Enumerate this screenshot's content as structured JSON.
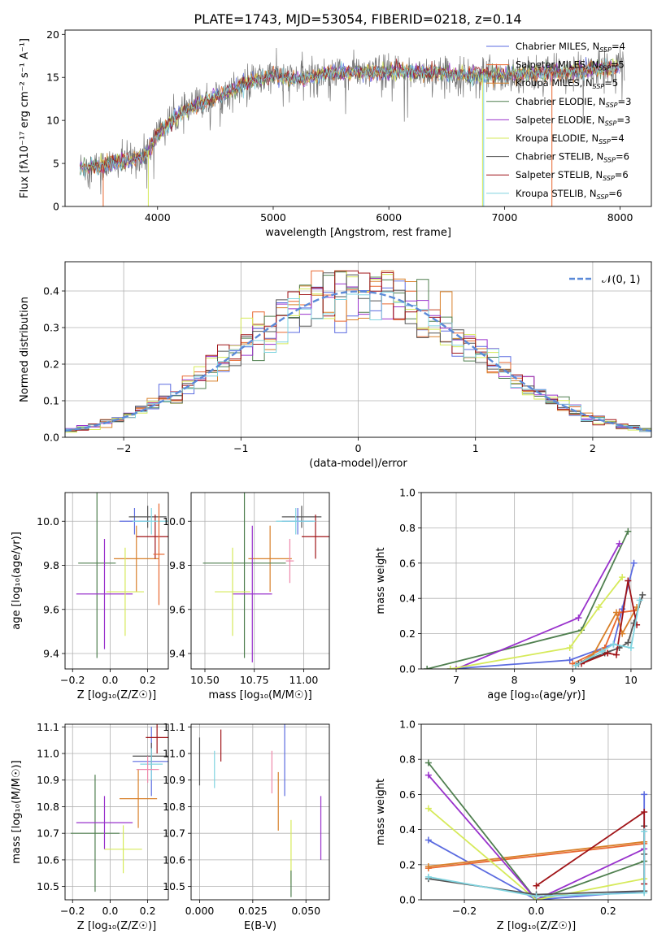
{
  "figure": {
    "title": "PLATE=1743, MJD=53054, FIBERID=0218, z=0.14"
  },
  "colors": {
    "Chabrier MILES": "#5b6be0",
    "Salpeter MILES": "#e8672f",
    "Kroupa MILES": "#d8802a",
    "Chabrier ELODIE": "#4f7f4f",
    "Salpeter ELODIE": "#9932cc",
    "Kroupa ELODIE": "#d6ea5a",
    "Chabrier STELIB": "#555555",
    "Salpeter STELIB": "#a01418",
    "Kroupa STELIB": "#80d4e0",
    "Salpeter MILES (pink)": "#ee88aa"
  },
  "chart_data": [
    {
      "id": "spectrum",
      "type": "line",
      "title": "PLATE=1743, MJD=53054, FIBERID=0218, z=0.14",
      "xlabel": "wavelength [Angstrom, rest frame]",
      "ylabel": "Flux [fλ10⁻¹⁷ erg cm⁻² s⁻¹ A⁻¹]",
      "xlim": [
        3200,
        8270
      ],
      "ylim": [
        0,
        20.5
      ],
      "xticks": [
        4000,
        5000,
        6000,
        7000,
        8000
      ],
      "yticks": [
        0,
        5,
        10,
        15,
        20
      ],
      "legend_placement": "top-right",
      "legend": [
        {
          "name": "Chabrier MILES, N_SSP=4",
          "color": "#5b6be0"
        },
        {
          "name": "Salpeter MILES, N_SSP=5",
          "color": "#e8672f"
        },
        {
          "name": "Kroupa MILES, N_SSP=5",
          "color": "#d8802a"
        },
        {
          "name": "Chabrier ELODIE, N_SSP=3",
          "color": "#4f7f4f"
        },
        {
          "name": "Salpeter ELODIE, N_SSP=3",
          "color": "#9932cc"
        },
        {
          "name": "Kroupa ELODIE, N_SSP=4",
          "color": "#d6ea5a"
        },
        {
          "name": "Chabrier STELIB, N_SSP=6",
          "color": "#555555"
        },
        {
          "name": "Salpeter STELIB, N_SSP=6",
          "color": "#a01418"
        },
        {
          "name": "Kroupa STELIB, N_SSP=6",
          "color": "#80d4e0"
        }
      ],
      "continuum": [
        [
          3300,
          4.6
        ],
        [
          3500,
          4.7
        ],
        [
          3700,
          5.2
        ],
        [
          3900,
          6.0
        ],
        [
          4000,
          8.5
        ],
        [
          4200,
          10.8
        ],
        [
          4400,
          12.2
        ],
        [
          4600,
          13.2
        ],
        [
          4800,
          14.5
        ],
        [
          5000,
          15.2
        ],
        [
          5200,
          14.8
        ],
        [
          5500,
          15.5
        ],
        [
          5800,
          15.6
        ],
        [
          6000,
          15.6
        ],
        [
          6300,
          15.6
        ],
        [
          6600,
          15.3
        ],
        [
          7000,
          15.3
        ],
        [
          7500,
          15.6
        ],
        [
          8000,
          16.3
        ]
      ]
    },
    {
      "id": "residuals",
      "type": "line",
      "xlabel": "(data-model)/error",
      "ylabel": "Normed distribution",
      "xlim": [
        -2.5,
        2.5
      ],
      "ylim": [
        0,
        0.48
      ],
      "xticks": [
        -2,
        -1,
        0,
        1,
        2
      ],
      "yticks": [
        0.0,
        0.1,
        0.2,
        0.3,
        0.4
      ],
      "grid": true,
      "legend_placement": "top-right",
      "legend": [
        {
          "name": "𝒩(0, 1)",
          "color": "#5b8ad8",
          "dashed": true
        }
      ],
      "bins": [
        -2.5,
        2.5,
        50
      ],
      "normal": {
        "mean": 0,
        "sigma": 1
      }
    },
    {
      "id": "age_vs_Z",
      "type": "scatter",
      "xlabel": "Z [log₁₀(Z/Z☉)]",
      "ylabel": "age  [log₁₀(age/yr)]",
      "xlim": [
        -0.24,
        0.31
      ],
      "ylim": [
        9.33,
        10.13
      ],
      "xticks": [
        -0.2,
        0.0,
        0.2
      ],
      "yticks": [
        9.4,
        9.6,
        9.8,
        10.0
      ],
      "grid": true,
      "points": [
        {
          "x": 0.13,
          "y": 10.0,
          "xerr": 0.08,
          "yerr": 0.06,
          "c": "#5b6be0"
        },
        {
          "x": 0.14,
          "y": 9.83,
          "xerr": 0.12,
          "yerr": 0.15,
          "c": "#d8802a"
        },
        {
          "x": -0.07,
          "y": 9.81,
          "xerr": 0.1,
          "yerr": 0.43,
          "c": "#4f7f4f"
        },
        {
          "x": -0.03,
          "y": 9.67,
          "xerr": 0.15,
          "yerr": 0.25,
          "c": "#9932cc"
        },
        {
          "x": 0.08,
          "y": 9.68,
          "xerr": 0.1,
          "yerr": 0.2,
          "c": "#d6ea5a"
        },
        {
          "x": 0.2,
          "y": 10.02,
          "xerr": 0.1,
          "yerr": 0.05,
          "c": "#555555"
        },
        {
          "x": 0.24,
          "y": 9.93,
          "xerr": 0.1,
          "yerr": 0.1,
          "c": "#a01418"
        },
        {
          "x": 0.22,
          "y": 10.0,
          "xerr": 0.1,
          "yerr": 0.06,
          "c": "#80d4e0"
        },
        {
          "x": 0.26,
          "y": 9.85,
          "xerr": 0.03,
          "yerr": 0.23,
          "c": "#e8672f"
        }
      ]
    },
    {
      "id": "age_vs_mass",
      "type": "scatter",
      "xlabel": "mass [log₁₀(M/M☉)]",
      "ylabel": "",
      "xlim": [
        10.43,
        11.13
      ],
      "ylim": [
        9.33,
        10.13
      ],
      "xticks": [
        10.5,
        10.75,
        11.0
      ],
      "yticks": [
        9.4,
        9.6,
        9.8,
        10.0
      ],
      "grid": true,
      "points": [
        {
          "x": 10.97,
          "y": 10.0,
          "xerr": 0.08,
          "yerr": 0.06,
          "c": "#5b6be0"
        },
        {
          "x": 10.83,
          "y": 9.83,
          "xerr": 0.11,
          "yerr": 0.15,
          "c": "#d8802a"
        },
        {
          "x": 10.7,
          "y": 9.81,
          "xerr": 0.21,
          "yerr": 0.43,
          "c": "#4f7f4f"
        },
        {
          "x": 10.74,
          "y": 9.67,
          "xerr": 0.1,
          "yerr": 0.31,
          "c": "#9932cc"
        },
        {
          "x": 10.64,
          "y": 9.68,
          "xerr": 0.09,
          "yerr": 0.2,
          "c": "#d6ea5a"
        },
        {
          "x": 10.99,
          "y": 10.02,
          "xerr": 0.1,
          "yerr": 0.05,
          "c": "#555555"
        },
        {
          "x": 11.06,
          "y": 9.93,
          "xerr": 0.07,
          "yerr": 0.1,
          "c": "#a01418"
        },
        {
          "x": 10.96,
          "y": 10.0,
          "xerr": 0.1,
          "yerr": 0.06,
          "c": "#80d4e0"
        },
        {
          "x": 10.93,
          "y": 9.82,
          "xerr": 0.02,
          "yerr": 0.1,
          "c": "#ee88aa"
        }
      ]
    },
    {
      "id": "weight_vs_age",
      "type": "line",
      "xlabel": "age  [log₁₀(age/yr)]",
      "ylabel": "mass weight",
      "xlim": [
        6.4,
        10.35
      ],
      "ylim": [
        0,
        1
      ],
      "xticks": [
        7,
        8,
        9,
        10
      ],
      "yticks": [
        0.0,
        0.2,
        0.4,
        0.6,
        0.8,
        1.0
      ],
      "grid": true,
      "series": [
        {
          "c": "#5b6be0",
          "x": [
            6.9,
            8.95,
            9.7,
            9.85,
            10.05
          ],
          "y": [
            0.0,
            0.05,
            0.14,
            0.34,
            0.6
          ]
        },
        {
          "c": "#e8672f",
          "x": [
            9.0,
            9.55,
            9.8,
            10.05
          ],
          "y": [
            0.03,
            0.12,
            0.32,
            0.33
          ]
        },
        {
          "c": "#d8802a",
          "x": [
            9.05,
            9.35,
            9.75,
            9.85,
            10.1
          ],
          "y": [
            0.02,
            0.08,
            0.32,
            0.2,
            0.35
          ]
        },
        {
          "c": "#4f7f4f",
          "x": [
            6.5,
            9.15,
            9.95
          ],
          "y": [
            0.0,
            0.22,
            0.78
          ]
        },
        {
          "c": "#9932cc",
          "x": [
            7.0,
            9.1,
            9.8
          ],
          "y": [
            0.0,
            0.29,
            0.71
          ]
        },
        {
          "c": "#d6ea5a",
          "x": [
            6.9,
            8.95,
            9.45,
            9.85
          ],
          "y": [
            0.0,
            0.12,
            0.35,
            0.52
          ]
        },
        {
          "c": "#555555",
          "x": [
            9.1,
            9.55,
            9.8,
            9.95,
            10.05,
            10.2
          ],
          "y": [
            0.03,
            0.09,
            0.12,
            0.15,
            0.26,
            0.42
          ]
        },
        {
          "c": "#a01418",
          "x": [
            9.15,
            9.6,
            9.75,
            9.95,
            10.1
          ],
          "y": [
            0.03,
            0.09,
            0.08,
            0.5,
            0.25
          ]
        },
        {
          "c": "#80d4e0",
          "x": [
            9.05,
            9.5,
            9.7,
            10.0,
            10.15
          ],
          "y": [
            0.02,
            0.1,
            0.14,
            0.12,
            0.39
          ]
        }
      ]
    },
    {
      "id": "mass_vs_Z",
      "type": "scatter",
      "xlabel": "Z [log₁₀(Z/Z☉)]",
      "ylabel": "mass [log₁₀(M/M☉)]",
      "xlim": [
        -0.24,
        0.31
      ],
      "ylim": [
        10.45,
        11.11
      ],
      "xticks": [
        -0.2,
        0.0,
        0.2
      ],
      "yticks": [
        10.5,
        10.6,
        10.7,
        10.8,
        10.9,
        11.0,
        11.1
      ],
      "grid": true,
      "points": [
        {
          "x": 0.22,
          "y": 10.97,
          "xerr": 0.1,
          "yerr": 0.13,
          "c": "#5b6be0"
        },
        {
          "x": 0.15,
          "y": 10.83,
          "xerr": 0.1,
          "yerr": 0.11,
          "c": "#d8802a"
        },
        {
          "x": -0.08,
          "y": 10.7,
          "xerr": 0.13,
          "yerr": 0.22,
          "c": "#4f7f4f"
        },
        {
          "x": -0.03,
          "y": 10.74,
          "xerr": 0.15,
          "yerr": 0.1,
          "c": "#9932cc"
        },
        {
          "x": 0.07,
          "y": 10.64,
          "xerr": 0.1,
          "yerr": 0.09,
          "c": "#d6ea5a"
        },
        {
          "x": 0.22,
          "y": 10.99,
          "xerr": 0.1,
          "yerr": 0.05,
          "c": "#555555"
        },
        {
          "x": 0.25,
          "y": 11.06,
          "xerr": 0.06,
          "yerr": 0.06,
          "c": "#a01418"
        },
        {
          "x": 0.22,
          "y": 10.96,
          "xerr": 0.06,
          "yerr": 0.06,
          "c": "#80d4e0"
        },
        {
          "x": 0.2,
          "y": 10.94,
          "xerr": 0.06,
          "yerr": 0.05,
          "c": "#ee88aa"
        }
      ]
    },
    {
      "id": "mass_vs_ebv",
      "type": "scatter",
      "xlabel": "E(B-V)",
      "ylabel": "",
      "xlim": [
        -0.004,
        0.061
      ],
      "ylim": [
        10.45,
        11.11
      ],
      "xticks": [
        0.0,
        0.025,
        0.05
      ],
      "ytick_labels": [
        "10.5",
        "10.6",
        "10.7",
        "10.8",
        "10.9",
        "11.0",
        "11.1"
      ],
      "yticks": [
        10.5,
        10.6,
        10.7,
        10.8,
        10.9,
        11.0,
        11.1
      ],
      "grid": true,
      "points": [
        {
          "x": 0.0,
          "y": 10.97,
          "yerr": 0.09,
          "c": "#555555"
        },
        {
          "x": 0.007,
          "y": 10.94,
          "yerr": 0.07,
          "c": "#80d4e0"
        },
        {
          "x": 0.01,
          "y": 11.03,
          "yerr": 0.06,
          "c": "#a01418"
        },
        {
          "x": 0.034,
          "y": 10.93,
          "yerr": 0.08,
          "c": "#ee88aa"
        },
        {
          "x": 0.037,
          "y": 10.82,
          "yerr": 0.11,
          "c": "#d8802a"
        },
        {
          "x": 0.04,
          "y": 10.99,
          "yerr": 0.15,
          "c": "#5b6be0"
        },
        {
          "x": 0.043,
          "y": 10.63,
          "yerr": 0.12,
          "c": "#d6ea5a"
        },
        {
          "x": 0.043,
          "y": 10.51,
          "yerr": 0.05,
          "c": "#4f7f4f"
        },
        {
          "x": 0.057,
          "y": 10.72,
          "yerr": 0.12,
          "c": "#9932cc"
        }
      ]
    },
    {
      "id": "weight_vs_Z",
      "type": "line",
      "xlabel": "Z [log₁₀(Z/Z☉)]",
      "ylabel": "mass weight",
      "xlim": [
        -0.32,
        0.32
      ],
      "ylim": [
        0,
        1
      ],
      "xticks": [
        -0.2,
        0.0,
        0.2
      ],
      "yticks": [
        0.0,
        0.2,
        0.4,
        0.6,
        0.8,
        1.0
      ],
      "grid": true,
      "series": [
        {
          "c": "#5b6be0",
          "x": [
            -0.3,
            0.0,
            0.3,
            0.3
          ],
          "y": [
            0.34,
            0.0,
            0.05,
            0.6
          ]
        },
        {
          "c": "#e8672f",
          "x": [
            -0.3,
            0.3
          ],
          "y": [
            0.18,
            0.32
          ]
        },
        {
          "c": "#d8802a",
          "x": [
            -0.3,
            0.3
          ],
          "y": [
            0.19,
            0.33
          ]
        },
        {
          "c": "#4f7f4f",
          "x": [
            -0.3,
            0.0,
            0.3
          ],
          "y": [
            0.78,
            0.0,
            0.22
          ]
        },
        {
          "c": "#9932cc",
          "x": [
            -0.3,
            0.0,
            0.3
          ],
          "y": [
            0.71,
            0.0,
            0.29
          ]
        },
        {
          "c": "#d6ea5a",
          "x": [
            -0.3,
            0.0,
            0.3
          ],
          "y": [
            0.52,
            0.0,
            0.12
          ]
        },
        {
          "c": "#555555",
          "x": [
            -0.3,
            0.0,
            0.3,
            0.3,
            0.3
          ],
          "y": [
            0.12,
            0.03,
            0.05,
            0.26,
            0.42
          ]
        },
        {
          "c": "#a01418",
          "x": [
            0.0,
            0.3,
            0.3
          ],
          "y": [
            0.08,
            0.5,
            0.09
          ]
        },
        {
          "c": "#80d4e0",
          "x": [
            -0.3,
            0.0,
            0.3,
            0.3
          ],
          "y": [
            0.13,
            0.02,
            0.04,
            0.39
          ]
        }
      ]
    }
  ]
}
